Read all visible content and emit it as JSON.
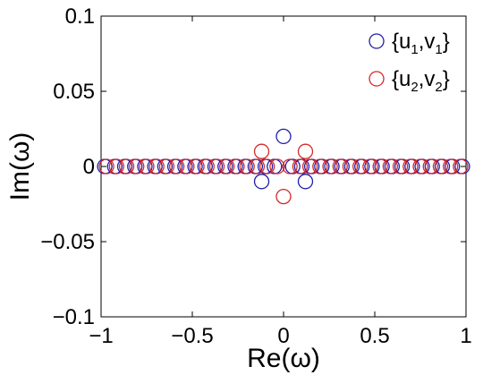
{
  "chart_data": {
    "type": "scatter",
    "xlabel": "Re(ω)",
    "ylabel": "Im(ω)",
    "xlim": [
      -1,
      1
    ],
    "ylim": [
      -0.1,
      0.1
    ],
    "x_ticks": [
      -1,
      -0.5,
      0,
      0.5,
      1
    ],
    "x_tick_labels": [
      "−1",
      "−0.5",
      "0",
      "0.5",
      "1"
    ],
    "y_ticks": [
      -0.1,
      -0.05,
      0,
      0.05,
      0.1
    ],
    "y_tick_labels": [
      "−0.1",
      "−0.05",
      "0",
      "0.05",
      "0.1"
    ],
    "grid": false,
    "legend_position": "top-right",
    "marker": "open-circle",
    "series": [
      {
        "color": "#1f1fa8",
        "legend": {
          "open": "{u",
          "sub1": "1",
          "mid": ",v",
          "sub2": "1",
          "close": "}"
        },
        "points": [
          [
            -0.98,
            0
          ],
          [
            -0.925,
            0
          ],
          [
            -0.87,
            0
          ],
          [
            -0.815,
            0
          ],
          [
            -0.76,
            0
          ],
          [
            -0.705,
            0
          ],
          [
            -0.65,
            0
          ],
          [
            -0.595,
            0
          ],
          [
            -0.54,
            0
          ],
          [
            -0.485,
            0
          ],
          [
            -0.43,
            0
          ],
          [
            -0.375,
            0
          ],
          [
            -0.32,
            0
          ],
          [
            -0.265,
            0
          ],
          [
            -0.21,
            0
          ],
          [
            -0.155,
            0
          ],
          [
            -0.1,
            0
          ],
          [
            -0.05,
            0
          ],
          [
            0.05,
            0
          ],
          [
            0.1,
            0
          ],
          [
            0.155,
            0
          ],
          [
            0.21,
            0
          ],
          [
            0.265,
            0
          ],
          [
            0.32,
            0
          ],
          [
            0.375,
            0
          ],
          [
            0.43,
            0
          ],
          [
            0.485,
            0
          ],
          [
            0.54,
            0
          ],
          [
            0.595,
            0
          ],
          [
            0.65,
            0
          ],
          [
            0.705,
            0
          ],
          [
            0.76,
            0
          ],
          [
            0.815,
            0
          ],
          [
            0.87,
            0
          ],
          [
            0.925,
            0
          ],
          [
            0.98,
            0
          ],
          [
            0,
            0.02
          ],
          [
            -0.12,
            -0.01
          ],
          [
            0.12,
            -0.01
          ]
        ]
      },
      {
        "color": "#d42a2a",
        "legend": {
          "open": "{u",
          "sub1": "2",
          "mid": ",v",
          "sub2": "2",
          "close": "}"
        },
        "points": [
          [
            -0.97,
            0
          ],
          [
            -0.915,
            0
          ],
          [
            -0.86,
            0
          ],
          [
            -0.805,
            0
          ],
          [
            -0.75,
            0
          ],
          [
            -0.695,
            0
          ],
          [
            -0.64,
            0
          ],
          [
            -0.585,
            0
          ],
          [
            -0.53,
            0
          ],
          [
            -0.475,
            0
          ],
          [
            -0.42,
            0
          ],
          [
            -0.365,
            0
          ],
          [
            -0.31,
            0
          ],
          [
            -0.255,
            0
          ],
          [
            -0.2,
            0
          ],
          [
            -0.145,
            0
          ],
          [
            -0.09,
            0
          ],
          [
            -0.035,
            0
          ],
          [
            0.035,
            0
          ],
          [
            0.09,
            0
          ],
          [
            0.145,
            0
          ],
          [
            0.2,
            0
          ],
          [
            0.255,
            0
          ],
          [
            0.31,
            0
          ],
          [
            0.365,
            0
          ],
          [
            0.42,
            0
          ],
          [
            0.475,
            0
          ],
          [
            0.53,
            0
          ],
          [
            0.585,
            0
          ],
          [
            0.64,
            0
          ],
          [
            0.695,
            0
          ],
          [
            0.75,
            0
          ],
          [
            0.805,
            0
          ],
          [
            0.86,
            0
          ],
          [
            0.915,
            0
          ],
          [
            0.97,
            0
          ],
          [
            0,
            -0.02
          ],
          [
            -0.12,
            0.01
          ],
          [
            0.12,
            0.01
          ]
        ]
      }
    ]
  }
}
